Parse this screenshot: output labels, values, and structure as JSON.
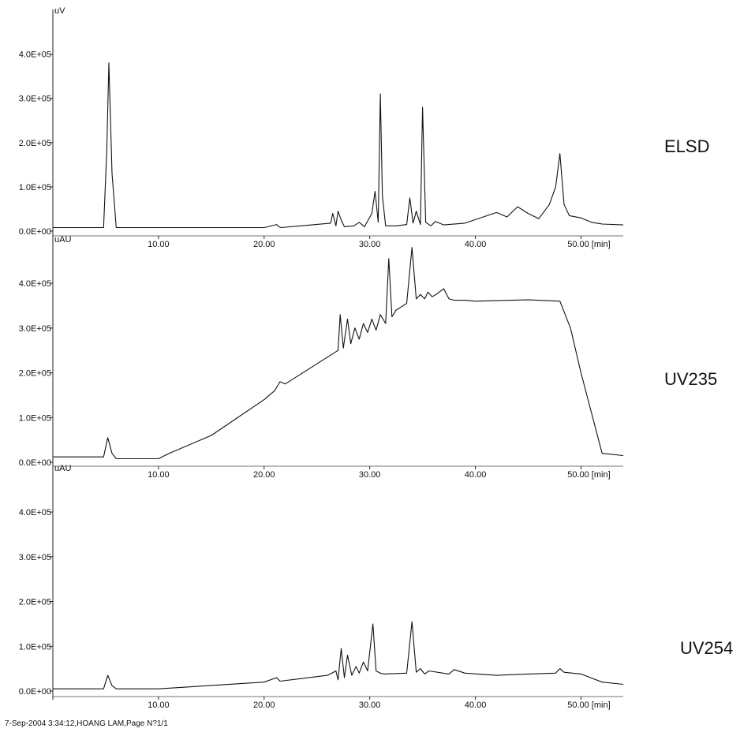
{
  "footer": "7-Sep-2004   3:34:12,HOANG LAM,Page N?1/1",
  "chart_data": [
    {
      "type": "line",
      "detector": "ELSD",
      "unit": "uV",
      "x_ticks": [
        10,
        20,
        30,
        40,
        50
      ],
      "x_tick_labels": [
        "10.00",
        "20.00",
        "30.00",
        "40.00",
        "50.00 [min]"
      ],
      "y_ticks": [
        0,
        100000,
        200000,
        300000,
        400000
      ],
      "y_tick_labels": [
        "0.0E+00",
        "1.0E+05",
        "2.0E+05",
        "3.0E+05",
        "4.0E+05"
      ],
      "xlim": [
        0,
        54
      ],
      "ylim": [
        0,
        490000
      ],
      "x": [
        0,
        4.8,
        5.1,
        5.3,
        5.6,
        6.0,
        20,
        21.2,
        21.4,
        21.6,
        26.3,
        26.5,
        26.8,
        27.0,
        27.3,
        27.6,
        28.5,
        29.0,
        29.5,
        30.2,
        30.5,
        30.8,
        31.0,
        31.2,
        31.5,
        32.5,
        33.5,
        33.8,
        34.1,
        34.4,
        34.8,
        35.0,
        35.3,
        35.8,
        36.2,
        36.6,
        37.0,
        39,
        42,
        43,
        44,
        45,
        46,
        47,
        47.6,
        48.0,
        48.4,
        48.9,
        50,
        51,
        52,
        54
      ],
      "y": [
        8000,
        8000,
        180000,
        380000,
        130000,
        8000,
        8000,
        15000,
        10000,
        8000,
        18000,
        40000,
        12000,
        45000,
        25000,
        10000,
        12000,
        20000,
        10000,
        40000,
        90000,
        20000,
        310000,
        80000,
        12000,
        12000,
        15000,
        75000,
        18000,
        45000,
        15000,
        280000,
        20000,
        12000,
        22000,
        18000,
        14000,
        18000,
        42000,
        32000,
        55000,
        40000,
        28000,
        60000,
        100000,
        175000,
        60000,
        35000,
        30000,
        20000,
        16000,
        14000
      ]
    },
    {
      "type": "line",
      "detector": "UV235",
      "unit": "uAU",
      "x_ticks": [
        10,
        20,
        30,
        40,
        50
      ],
      "x_tick_labels": [
        "10.00",
        "20.00",
        "30.00",
        "40.00",
        "50.00 [min]"
      ],
      "y_ticks": [
        0,
        100000,
        200000,
        300000,
        400000
      ],
      "y_tick_labels": [
        "0.0E+00",
        "1.0E+05",
        "2.0E+05",
        "3.0E+05",
        "4.0E+05"
      ],
      "xlim": [
        0,
        54
      ],
      "ylim": [
        0,
        490000
      ],
      "x": [
        0,
        4.8,
        5.2,
        5.6,
        6.0,
        10,
        11,
        15,
        20,
        21,
        21.5,
        22,
        25,
        27.0,
        27.2,
        27.5,
        27.9,
        28.2,
        28.6,
        29.0,
        29.4,
        29.8,
        30.2,
        30.6,
        31.0,
        31.5,
        31.8,
        32.1,
        32.5,
        33.5,
        34.0,
        34.4,
        34.8,
        35.2,
        35.5,
        35.9,
        36.3,
        37.0,
        37.5,
        38.0,
        39.0,
        40,
        45,
        48,
        49,
        50,
        52,
        54
      ],
      "y": [
        12000,
        12000,
        55000,
        20000,
        8000,
        8000,
        20000,
        60000,
        140000,
        160000,
        180000,
        175000,
        220000,
        250000,
        330000,
        255000,
        320000,
        265000,
        300000,
        275000,
        310000,
        290000,
        320000,
        295000,
        330000,
        310000,
        455000,
        325000,
        340000,
        355000,
        480000,
        365000,
        375000,
        365000,
        380000,
        370000,
        375000,
        388000,
        365000,
        362000,
        362000,
        360000,
        363000,
        360000,
        300000,
        200000,
        20000,
        15000
      ]
    },
    {
      "type": "line",
      "detector": "UV254",
      "unit": "uAU",
      "x_ticks": [
        10,
        20,
        30,
        40,
        50
      ],
      "x_tick_labels": [
        "10.00",
        "20.00",
        "30.00",
        "40.00",
        "50.00 [min]"
      ],
      "y_ticks": [
        0,
        100000,
        200000,
        300000,
        400000
      ],
      "y_tick_labels": [
        "0.0E+00",
        "1.0E+05",
        "2.0E+05",
        "3.0E+05",
        "4.0E+05"
      ],
      "xlim": [
        0,
        54
      ],
      "ylim": [
        0,
        490000
      ],
      "x": [
        0,
        4.8,
        5.2,
        5.6,
        6.0,
        10,
        20,
        21.2,
        21.5,
        26,
        26.8,
        27.0,
        27.3,
        27.6,
        27.9,
        28.3,
        28.7,
        29.0,
        29.4,
        29.8,
        30.3,
        30.6,
        31.0,
        31.3,
        33.5,
        34.0,
        34.4,
        34.8,
        35.2,
        35.6,
        37.5,
        38,
        39,
        42,
        45,
        47.6,
        48.0,
        48.4,
        50,
        52,
        54
      ],
      "y": [
        5000,
        5000,
        35000,
        12000,
        5000,
        5000,
        20000,
        30000,
        22000,
        35000,
        45000,
        25000,
        95000,
        30000,
        80000,
        35000,
        55000,
        40000,
        65000,
        45000,
        150000,
        45000,
        40000,
        38000,
        40000,
        155000,
        42000,
        50000,
        38000,
        45000,
        38000,
        48000,
        40000,
        35000,
        38000,
        40000,
        50000,
        42000,
        38000,
        20000,
        15000
      ]
    }
  ]
}
